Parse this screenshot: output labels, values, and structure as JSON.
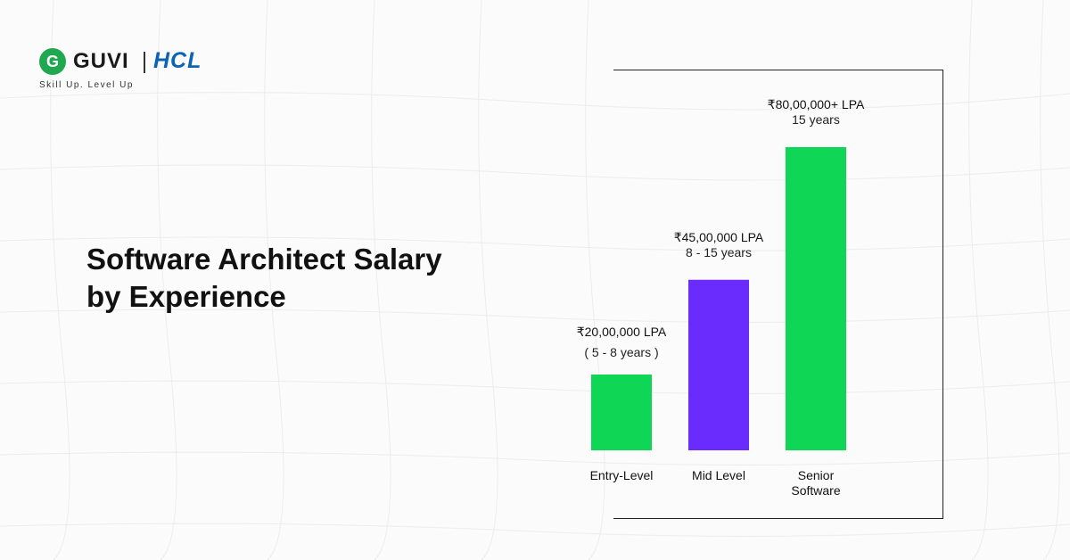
{
  "brand": {
    "logo_mark": "G",
    "name": "GUVI",
    "partner": "HCL",
    "tagline": "Skill Up. Level Up"
  },
  "heading": {
    "line1": "Software Architect Salary",
    "line2": "by Experience"
  },
  "colors": {
    "green": "#0fd655",
    "purple": "#6a2cfd",
    "brand_green": "#1fa84f",
    "hcl_blue": "#0b63b4"
  },
  "chart_data": {
    "type": "bar",
    "categories": [
      "Entry-Level",
      "Mid Level",
      "Senior Software"
    ],
    "category_lines": [
      [
        "Entry-Level"
      ],
      [
        "Mid Level"
      ],
      [
        "Senior",
        "Software"
      ]
    ],
    "values": [
      2000000,
      4500000,
      8000000
    ],
    "value_labels": [
      "₹20,00,000 LPA",
      "₹45,00,000 LPA",
      "₹80,00,000+ LPA"
    ],
    "experience_labels": [
      "( 5 - 8 years )",
      "8 - 15 years",
      "15 years"
    ],
    "bar_colors": [
      "#0fd655",
      "#6a2cfd",
      "#0fd655"
    ],
    "title": "",
    "xlabel": "",
    "ylabel": "",
    "grid": false
  }
}
